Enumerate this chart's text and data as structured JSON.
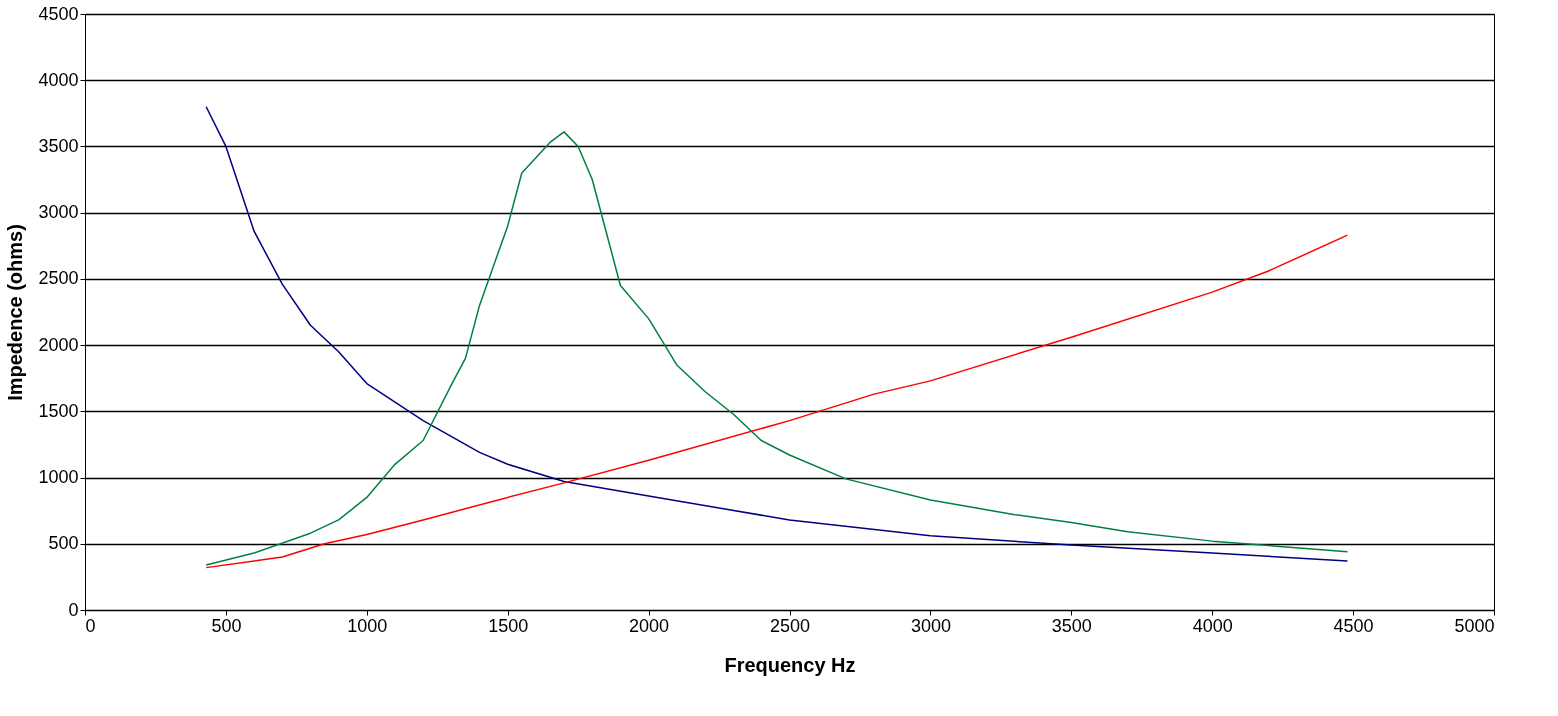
{
  "chart_data": {
    "type": "line",
    "xlabel": "Frequency Hz",
    "ylabel": "Impedence (ohms)",
    "xlim": [
      0,
      5000
    ],
    "xticks": [
      0,
      500,
      1000,
      1500,
      2000,
      2500,
      3000,
      3500,
      4000,
      4500,
      5000
    ],
    "ylim": [
      0,
      4500
    ],
    "yticks": [
      0,
      500,
      1000,
      1500,
      2000,
      2500,
      3000,
      3500,
      4000,
      4500
    ],
    "grid": "y",
    "marker": "none",
    "line_style": "solid",
    "series": [
      {
        "color": "#000080",
        "x": [
          430,
          500,
          600,
          700,
          800,
          900,
          1000,
          1200,
          1400,
          1500,
          1700,
          2000,
          2500,
          3000,
          3500,
          4000,
          4480
        ],
        "values": [
          3800,
          3500,
          2860,
          2460,
          2150,
          1950,
          1710,
          1430,
          1190,
          1100,
          970,
          860,
          680,
          560,
          490,
          430,
          370
        ]
      },
      {
        "color": "#ff0000",
        "x": [
          430,
          700,
          850,
          1000,
          1200,
          1500,
          1700,
          2000,
          2500,
          2800,
          3000,
          3500,
          4000,
          4200,
          4480
        ],
        "values": [
          320,
          400,
          500,
          570,
          680,
          850,
          960,
          1130,
          1430,
          1630,
          1730,
          2060,
          2400,
          2560,
          2830
        ]
      },
      {
        "color": "#008040",
        "x": [
          430,
          600,
          800,
          900,
          1000,
          1100,
          1200,
          1300,
          1350,
          1400,
          1500,
          1550,
          1650,
          1700,
          1750,
          1800,
          1850,
          1900,
          2000,
          2100,
          2200,
          2300,
          2400,
          2500,
          2700,
          3000,
          3300,
          3500,
          3700,
          4000,
          4480
        ],
        "values": [
          340,
          430,
          580,
          680,
          850,
          1100,
          1280,
          1700,
          1900,
          2300,
          2900,
          3300,
          3530,
          3610,
          3500,
          3250,
          2850,
          2450,
          2200,
          1850,
          1650,
          1480,
          1280,
          1170,
          990,
          830,
          720,
          660,
          590,
          520,
          440
        ]
      }
    ]
  }
}
